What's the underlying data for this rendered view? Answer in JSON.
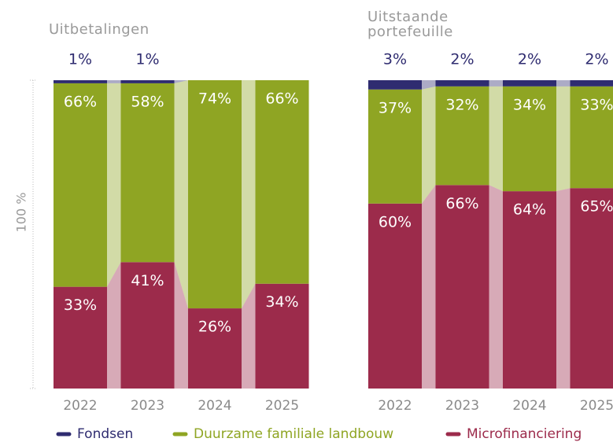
{
  "chart_data": [
    {
      "type": "bar",
      "stacked": true,
      "title": "Uitbetalingen",
      "ylabel": "100 %",
      "categories": [
        "2022",
        "2023",
        "2024",
        "2025"
      ],
      "ylim": [
        0,
        100
      ],
      "series": [
        {
          "name": "Microfinanciering",
          "color": "#9c2b4b",
          "values": [
            33,
            41,
            26,
            34
          ],
          "value_labels": [
            "33%",
            "41%",
            "26%",
            "34%"
          ]
        },
        {
          "name": "Duurzame familiale landbouw",
          "color": "#8fa523",
          "values": [
            66,
            58,
            74,
            66
          ],
          "value_labels": [
            "66%",
            "58%",
            "74%",
            "66%"
          ]
        },
        {
          "name": "Fondsen",
          "color": "#2f2c70",
          "values": [
            1,
            1,
            null,
            null
          ],
          "value_labels": [
            "1%",
            "1%",
            null,
            null
          ]
        }
      ]
    },
    {
      "type": "bar",
      "stacked": true,
      "title": "Uitstaande portefeuille",
      "categories": [
        "2022",
        "2023",
        "2024",
        "2025"
      ],
      "ylim": [
        0,
        100
      ],
      "series": [
        {
          "color": "#9c2b4b",
          "values": [
            60,
            66,
            64,
            65
          ],
          "value_labels": [
            "60%",
            "66%",
            "64%",
            "65%"
          ]
        },
        {
          "color": "#8fa523",
          "values": [
            37,
            32,
            34,
            33
          ],
          "value_labels": [
            "37%",
            "32%",
            "34%",
            "33%"
          ]
        },
        {
          "color": "#2f2c70",
          "values": [
            3,
            2,
            2,
            2
          ],
          "value_labels": [
            "3%",
            "2%",
            "2%",
            "2%"
          ]
        }
      ]
    }
  ]
}
